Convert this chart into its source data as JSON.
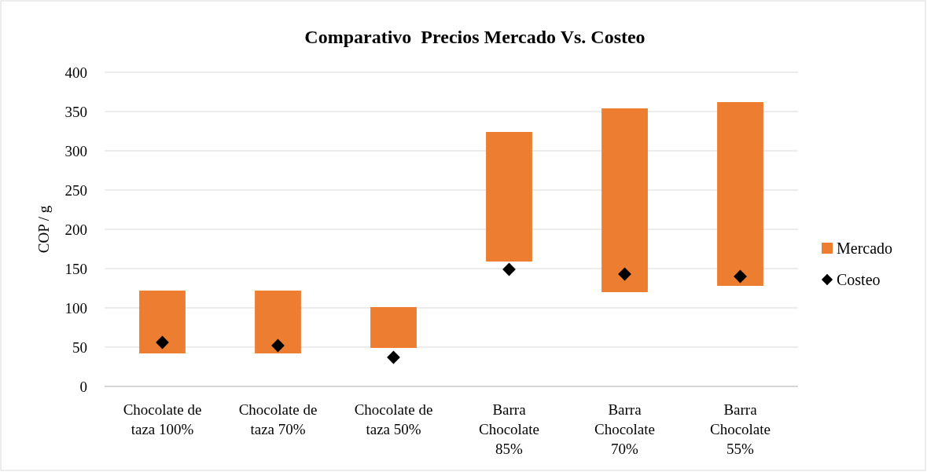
{
  "chart_data": {
    "type": "bar",
    "title": "Comparativo  Precios Mercado Vs. Costeo",
    "ylabel": "COP / g",
    "categories": [
      "Chocolate de taza 100%",
      "Chocolate de taza 70%",
      "Chocolate de taza 50%",
      "Barra Chocolate 85%",
      "Barra Chocolate 70%",
      "Barra Chocolate 55%"
    ],
    "series": [
      {
        "name": "Mercado",
        "color": "#ed7d31",
        "base": [
          42,
          42,
          49,
          159,
          120,
          128
        ],
        "values": [
          80,
          80,
          52,
          165,
          234,
          234
        ]
      },
      {
        "name": "Costeo",
        "type": "scatter",
        "color": "#000000",
        "marker": "diamond",
        "x": [
          "Chocolate de taza 100%",
          "Chocolate de taza 70%",
          "Chocolate de taza 50%",
          "Barra Chocolate 85%",
          "Barra Chocolate 70%",
          "Barra Chocolate 55%"
        ],
        "values": [
          56,
          52,
          37,
          149,
          143,
          140
        ]
      }
    ],
    "ylim": [
      0,
      400
    ],
    "yticks": [
      0,
      50,
      100,
      150,
      200,
      250,
      300,
      350,
      400
    ],
    "grid": "y",
    "legend": "right"
  }
}
